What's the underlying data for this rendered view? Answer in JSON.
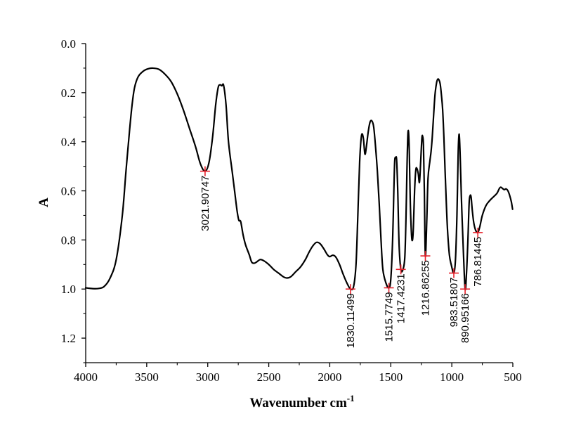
{
  "chart_data": {
    "type": "line",
    "xlabel": "Wavenumber cm",
    "xlabel_sup": "-1",
    "ylabel": "A",
    "xlim": [
      4000,
      500
    ],
    "ylim": [
      0.0,
      1.3
    ],
    "x_reversed": true,
    "y_reversed": true,
    "xticks": [
      "4000",
      "3500",
      "3000",
      "2500",
      "2000",
      "1500",
      "1000",
      "500"
    ],
    "yticks": [
      "0.0",
      "0.2",
      "0.4",
      "0.6",
      "0.8",
      "1.0",
      "1.2"
    ],
    "line_color": "#000000",
    "marker_color": "#e8202a",
    "series": [
      {
        "points": [
          [
            4000,
            0.995
          ],
          [
            3950,
            0.998
          ],
          [
            3900,
            0.998
          ],
          [
            3850,
            0.99
          ],
          [
            3800,
            0.955
          ],
          [
            3750,
            0.88
          ],
          [
            3700,
            0.7
          ],
          [
            3670,
            0.52
          ],
          [
            3640,
            0.35
          ],
          [
            3620,
            0.25
          ],
          [
            3600,
            0.18
          ],
          [
            3570,
            0.135
          ],
          [
            3530,
            0.113
          ],
          [
            3490,
            0.103
          ],
          [
            3450,
            0.1
          ],
          [
            3400,
            0.105
          ],
          [
            3350,
            0.125
          ],
          [
            3300,
            0.155
          ],
          [
            3250,
            0.205
          ],
          [
            3200,
            0.27
          ],
          [
            3150,
            0.345
          ],
          [
            3100,
            0.42
          ],
          [
            3060,
            0.49
          ],
          [
            3021.9,
            0.52
          ],
          [
            2990,
            0.485
          ],
          [
            2960,
            0.38
          ],
          [
            2935,
            0.25
          ],
          [
            2915,
            0.18
          ],
          [
            2900,
            0.168
          ],
          [
            2885,
            0.172
          ],
          [
            2870,
            0.17
          ],
          [
            2850,
            0.25
          ],
          [
            2830,
            0.4
          ],
          [
            2800,
            0.52
          ],
          [
            2780,
            0.6
          ],
          [
            2760,
            0.68
          ],
          [
            2745,
            0.72
          ],
          [
            2730,
            0.725
          ],
          [
            2710,
            0.78
          ],
          [
            2690,
            0.82
          ],
          [
            2660,
            0.86
          ],
          [
            2640,
            0.89
          ],
          [
            2620,
            0.895
          ],
          [
            2600,
            0.89
          ],
          [
            2570,
            0.88
          ],
          [
            2540,
            0.885
          ],
          [
            2500,
            0.9
          ],
          [
            2460,
            0.92
          ],
          [
            2420,
            0.935
          ],
          [
            2380,
            0.95
          ],
          [
            2350,
            0.955
          ],
          [
            2320,
            0.95
          ],
          [
            2280,
            0.93
          ],
          [
            2240,
            0.91
          ],
          [
            2200,
            0.88
          ],
          [
            2170,
            0.85
          ],
          [
            2140,
            0.825
          ],
          [
            2110,
            0.81
          ],
          [
            2080,
            0.815
          ],
          [
            2050,
            0.835
          ],
          [
            2020,
            0.86
          ],
          [
            2000,
            0.868
          ],
          [
            1975,
            0.862
          ],
          [
            1950,
            0.87
          ],
          [
            1920,
            0.9
          ],
          [
            1890,
            0.94
          ],
          [
            1860,
            0.975
          ],
          [
            1830.1,
            1.0
          ],
          [
            1805,
            0.99
          ],
          [
            1785,
            0.9
          ],
          [
            1770,
            0.7
          ],
          [
            1755,
            0.48
          ],
          [
            1740,
            0.375
          ],
          [
            1725,
            0.385
          ],
          [
            1712,
            0.45
          ],
          [
            1700,
            0.42
          ],
          [
            1685,
            0.36
          ],
          [
            1670,
            0.32
          ],
          [
            1655,
            0.315
          ],
          [
            1640,
            0.34
          ],
          [
            1625,
            0.42
          ],
          [
            1610,
            0.52
          ],
          [
            1595,
            0.65
          ],
          [
            1580,
            0.8
          ],
          [
            1565,
            0.92
          ],
          [
            1540,
            0.975
          ],
          [
            1515.8,
            0.995
          ],
          [
            1500,
            0.96
          ],
          [
            1485,
            0.8
          ],
          [
            1475,
            0.6
          ],
          [
            1468,
            0.48
          ],
          [
            1460,
            0.465
          ],
          [
            1452,
            0.475
          ],
          [
            1443,
            0.6
          ],
          [
            1432,
            0.82
          ],
          [
            1417.4,
            0.92
          ],
          [
            1400,
            0.92
          ],
          [
            1385,
            0.87
          ],
          [
            1375,
            0.7
          ],
          [
            1367,
            0.5
          ],
          [
            1360,
            0.37
          ],
          [
            1354,
            0.365
          ],
          [
            1348,
            0.45
          ],
          [
            1340,
            0.65
          ],
          [
            1330,
            0.78
          ],
          [
            1322,
            0.8
          ],
          [
            1315,
            0.75
          ],
          [
            1305,
            0.6
          ],
          [
            1295,
            0.515
          ],
          [
            1285,
            0.51
          ],
          [
            1275,
            0.53
          ],
          [
            1265,
            0.565
          ],
          [
            1255,
            0.48
          ],
          [
            1245,
            0.385
          ],
          [
            1238,
            0.38
          ],
          [
            1232,
            0.42
          ],
          [
            1225,
            0.6
          ],
          [
            1216.9,
            0.865
          ],
          [
            1205,
            0.72
          ],
          [
            1195,
            0.55
          ],
          [
            1180,
            0.48
          ],
          [
            1170,
            0.44
          ],
          [
            1160,
            0.38
          ],
          [
            1150,
            0.3
          ],
          [
            1138,
            0.21
          ],
          [
            1125,
            0.16
          ],
          [
            1115,
            0.145
          ],
          [
            1105,
            0.148
          ],
          [
            1095,
            0.165
          ],
          [
            1085,
            0.21
          ],
          [
            1075,
            0.27
          ],
          [
            1065,
            0.38
          ],
          [
            1055,
            0.52
          ],
          [
            1045,
            0.65
          ],
          [
            1035,
            0.76
          ],
          [
            1020,
            0.86
          ],
          [
            1005,
            0.9
          ],
          [
            983.5,
            0.935
          ],
          [
            970,
            0.88
          ],
          [
            958,
            0.7
          ],
          [
            948,
            0.45
          ],
          [
            942,
            0.375
          ],
          [
            937,
            0.385
          ],
          [
            930,
            0.48
          ],
          [
            922,
            0.62
          ],
          [
            915,
            0.72
          ],
          [
            905,
            0.85
          ],
          [
            890.95,
            1.0
          ],
          [
            880,
            0.94
          ],
          [
            868,
            0.8
          ],
          [
            858,
            0.65
          ],
          [
            850,
            0.62
          ],
          [
            842,
            0.625
          ],
          [
            832,
            0.68
          ],
          [
            820,
            0.73
          ],
          [
            805,
            0.76
          ],
          [
            786.8,
            0.77
          ],
          [
            770,
            0.745
          ],
          [
            750,
            0.7
          ],
          [
            720,
            0.66
          ],
          [
            690,
            0.64
          ],
          [
            660,
            0.625
          ],
          [
            630,
            0.61
          ],
          [
            610,
            0.59
          ],
          [
            598,
            0.585
          ],
          [
            585,
            0.59
          ],
          [
            570,
            0.595
          ],
          [
            555,
            0.592
          ],
          [
            540,
            0.6
          ],
          [
            525,
            0.62
          ],
          [
            512,
            0.645
          ],
          [
            502,
            0.675
          ]
        ]
      }
    ],
    "peaks": [
      {
        "x": 3021.90747,
        "y": 0.52,
        "label": "3021.90747",
        "pos": "below"
      },
      {
        "x": 1830.11499,
        "y": 1.0,
        "label": "1830.11499",
        "pos": "below"
      },
      {
        "x": 1515.7749,
        "y": 0.995,
        "label": "1515.7749",
        "pos": "below"
      },
      {
        "x": 1417.4231,
        "y": 0.92,
        "label": "1417.4231",
        "pos": "below"
      },
      {
        "x": 1216.86255,
        "y": 0.865,
        "label": "1216.86255",
        "pos": "below"
      },
      {
        "x": 983.51807,
        "y": 0.935,
        "label": "983.51807",
        "pos": "below"
      },
      {
        "x": 890.95166,
        "y": 1.0,
        "label": "890.95166",
        "pos": "below"
      },
      {
        "x": 786.81445,
        "y": 0.77,
        "label": "786.81445",
        "pos": "below"
      }
    ]
  }
}
